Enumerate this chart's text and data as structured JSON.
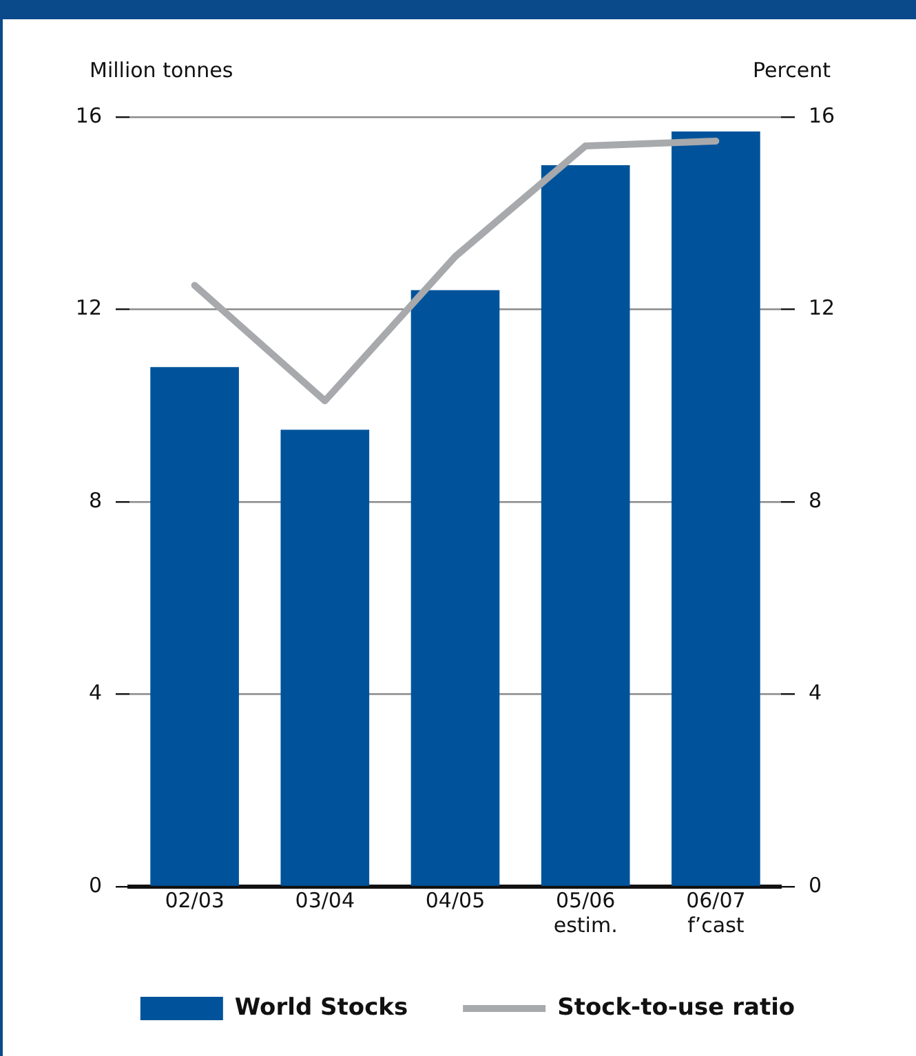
{
  "chart_data": {
    "type": "bar",
    "ylabel": "Million tonnes",
    "y2label": "Percent",
    "categories": [
      "02/03",
      "03/04",
      "04/05",
      "05/06\nestim.",
      "06/07\nf’cast"
    ],
    "series": [
      {
        "name": "World Stocks",
        "color": "#00539b",
        "values": [
          10.8,
          9.5,
          12.4,
          15.0,
          15.7
        ]
      },
      {
        "name": "Stock-to-use ratio",
        "type": "line",
        "axis": "y2",
        "color": "#a7a9ac",
        "values": [
          12.5,
          10.1,
          13.1,
          15.4,
          15.5
        ]
      }
    ],
    "ylim": [
      0,
      16
    ],
    "yticks": [
      0,
      4,
      8,
      12,
      16
    ],
    "y2lim": [
      0,
      16
    ],
    "y2ticks": [
      0,
      4,
      8,
      12,
      16
    ],
    "grid": "y",
    "legend": "bottom",
    "marker": "none"
  }
}
